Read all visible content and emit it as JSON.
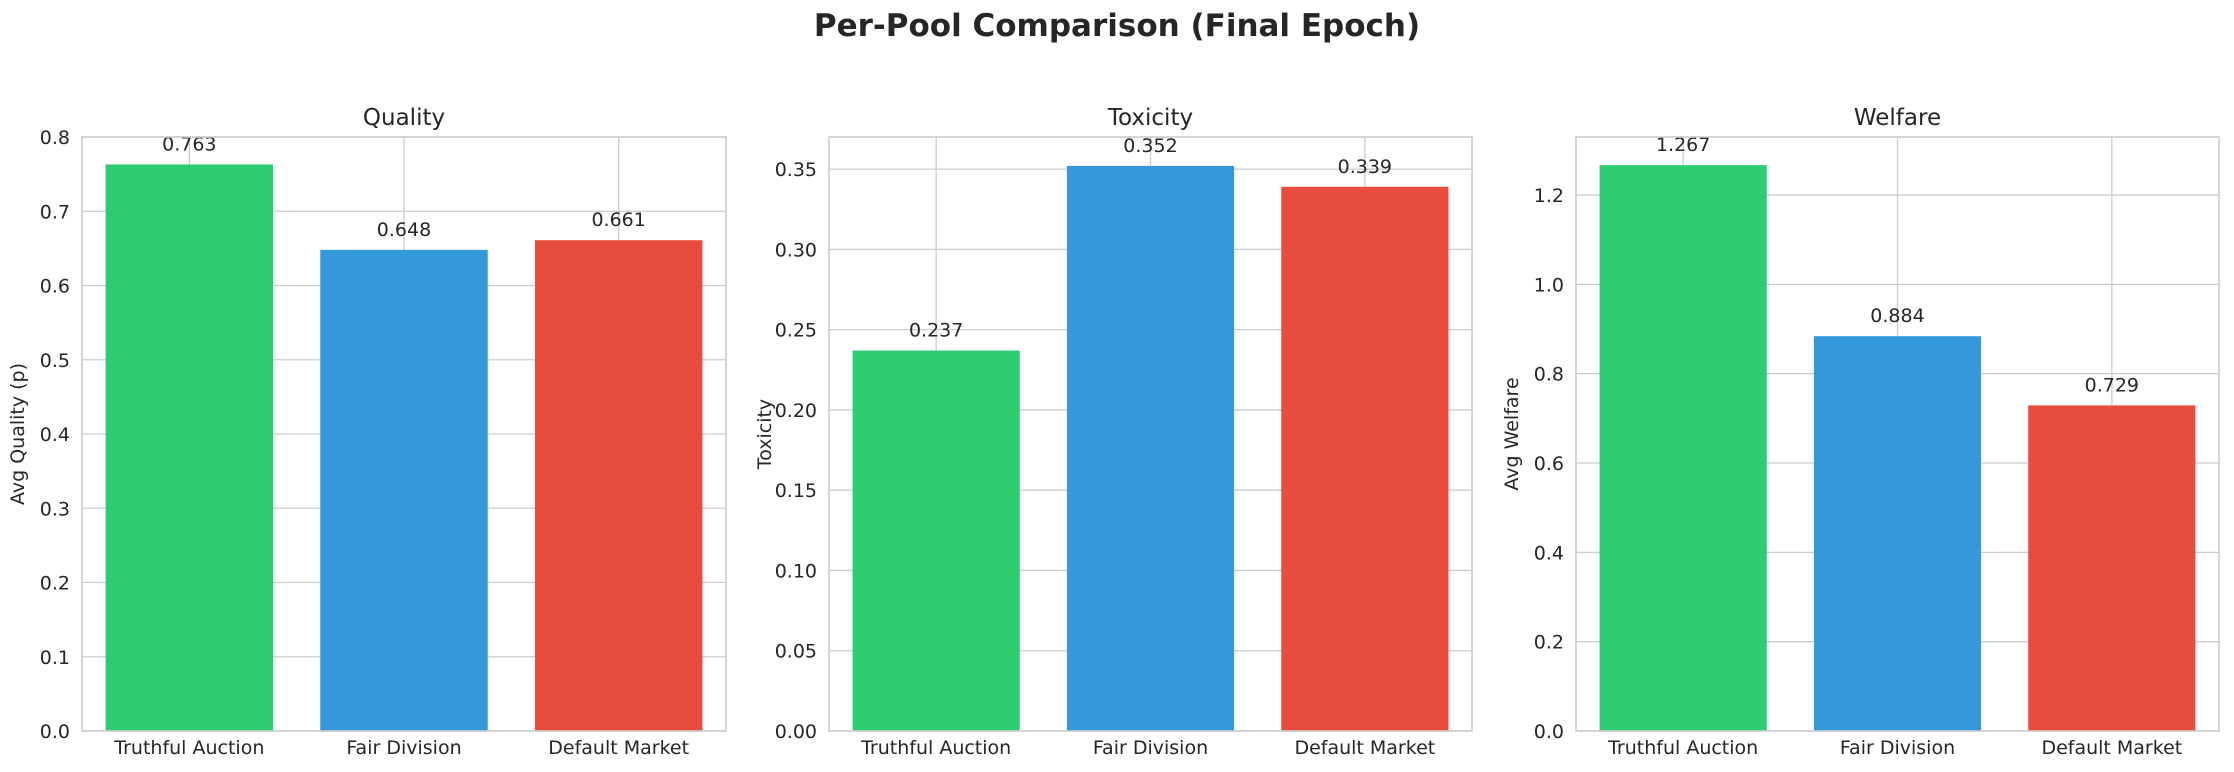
{
  "suptitle": "Per-Pool Comparison (Final Epoch)",
  "colors": [
    "#2ecc71",
    "#3498db",
    "#e74c3c"
  ],
  "chart_data": [
    {
      "type": "bar",
      "title": "Quality",
      "ylabel": "Avg Quality (p)",
      "categories": [
        "Truthful Auction",
        "Fair Division",
        "Default Market"
      ],
      "values": [
        0.763,
        0.648,
        0.661
      ],
      "value_labels": [
        "0.763",
        "0.648",
        "0.661"
      ],
      "ylim": [
        0,
        0.8
      ],
      "yticks": [
        0.0,
        0.1,
        0.2,
        0.3,
        0.4,
        0.5,
        0.6,
        0.7,
        0.8
      ],
      "ytick_labels": [
        "0.0",
        "0.1",
        "0.2",
        "0.3",
        "0.4",
        "0.5",
        "0.6",
        "0.7",
        "0.8"
      ],
      "grid": true
    },
    {
      "type": "bar",
      "title": "Toxicity",
      "ylabel": "Toxicity",
      "categories": [
        "Truthful Auction",
        "Fair Division",
        "Default Market"
      ],
      "values": [
        0.237,
        0.352,
        0.339
      ],
      "value_labels": [
        "0.237",
        "0.352",
        "0.339"
      ],
      "ylim": [
        0,
        0.37
      ],
      "yticks": [
        0.0,
        0.05,
        0.1,
        0.15,
        0.2,
        0.25,
        0.3,
        0.35
      ],
      "ytick_labels": [
        "0.00",
        "0.05",
        "0.10",
        "0.15",
        "0.20",
        "0.25",
        "0.30",
        "0.35"
      ],
      "grid": true
    },
    {
      "type": "bar",
      "title": "Welfare",
      "ylabel": "Avg Welfare",
      "categories": [
        "Truthful Auction",
        "Fair Division",
        "Default Market"
      ],
      "values": [
        1.267,
        0.884,
        0.729
      ],
      "value_labels": [
        "1.267",
        "0.884",
        "0.729"
      ],
      "ylim": [
        0,
        1.33
      ],
      "yticks": [
        0.0,
        0.2,
        0.4,
        0.6,
        0.8,
        1.0,
        1.2
      ],
      "ytick_labels": [
        "0.0",
        "0.2",
        "0.4",
        "0.6",
        "0.8",
        "1.0",
        "1.2"
      ],
      "grid": true
    }
  ]
}
